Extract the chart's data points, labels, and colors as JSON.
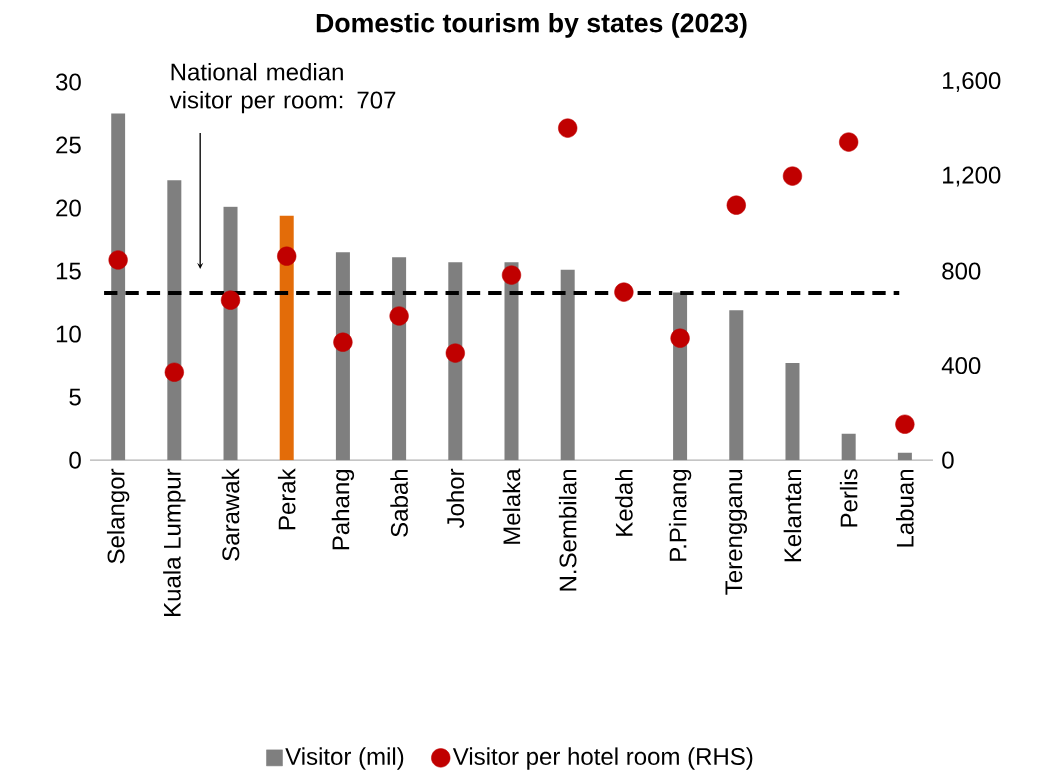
{
  "chart_data": {
    "type": "bar",
    "title": "Domestic tourism by states (2023)",
    "categories": [
      "Selangor",
      "Kuala Lumpur",
      "Sarawak",
      "Perak",
      "Pahang",
      "Sabah",
      "Johor",
      "Melaka",
      "N.Sembilan",
      "Kedah",
      "P.Pinang",
      "Terengganu",
      "Kelantan",
      "Perlis",
      "Labuan"
    ],
    "series": [
      {
        "name": "Visitor (mil)",
        "colors": [
          "#7f7f7f",
          "#7f7f7f",
          "#7f7f7f",
          "#e36c09",
          "#7f7f7f",
          "#7f7f7f",
          "#7f7f7f",
          "#7f7f7f",
          "#7f7f7f",
          "#7f7f7f",
          "#7f7f7f",
          "#7f7f7f",
          "#7f7f7f",
          "#7f7f7f",
          "#7f7f7f"
        ],
        "values": [
          27.5,
          22.2,
          20.1,
          19.4,
          16.5,
          16.1,
          15.7,
          15.7,
          15.1,
          null,
          13.3,
          11.9,
          7.7,
          2.1,
          0.6
        ]
      },
      {
        "name": "Visitor per hotel room (RHS)",
        "type": "scatter",
        "axis": "y2",
        "color": "#c00000",
        "marker": "circle",
        "values": [
          847,
          372,
          677,
          863,
          499,
          610,
          453,
          783,
          1405,
          711,
          516,
          1079,
          1202,
          1346,
          152
        ]
      }
    ],
    "ylim": [
      0,
      30
    ],
    "yticks": [
      0,
      5,
      10,
      15,
      20,
      25,
      30
    ],
    "y2lim": [
      0,
      1600
    ],
    "y2ticks": [
      0,
      400,
      800,
      {
        "value": 1200,
        "label": "1,200"
      },
      {
        "value": 1600,
        "label": "1,600"
      }
    ],
    "ref_lines": [
      {
        "axis": "y2",
        "value": 707,
        "color": "#000000",
        "line_style": "dashed"
      }
    ],
    "annotations": [
      "National median visitor per room: 707"
    ],
    "legend": "bottom",
    "grid": false
  }
}
